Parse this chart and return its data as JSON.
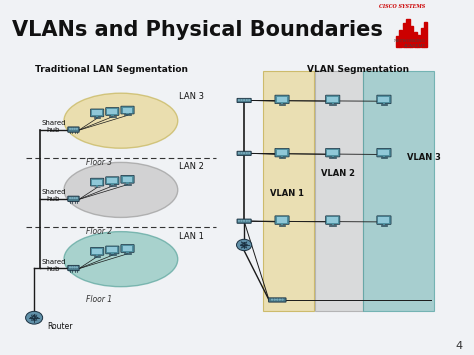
{
  "title": "VLANs and Physical Boundaries",
  "slide_bg": "#f0f2f5",
  "header_bg": "#dde4ed",
  "body_bg": "#f0f2f5",
  "page_number": "4",
  "trad_title": "Traditional LAN Segmentation",
  "vlan_title": "VLAN Segmentation",
  "lan_labels": [
    "LAN 3",
    "LAN 2",
    "LAN 1"
  ],
  "floor_labels": [
    "Floor 3",
    "Floor 2",
    "Floor 1"
  ],
  "vlan_labels": [
    "VLAN 1",
    "VLAN 2",
    "VLAN 3"
  ],
  "shared_hub_labels": [
    "Shared\nhub",
    "Shared\nhub",
    "Shared\nhub"
  ],
  "router_label": "Router",
  "ellipse_colors": [
    "#e8d898",
    "#c8c8c8",
    "#90c8c0"
  ],
  "ellipse_edge_colors": [
    "#c8b860",
    "#a0a0a0",
    "#60a8a0"
  ],
  "vlan_colors": [
    "#e8d898",
    "#d0d0d0",
    "#88c0c0"
  ],
  "vlan_edge_colors": [
    "#c0a840",
    "#a0a0a0",
    "#50a0a0"
  ],
  "title_fontsize": 15,
  "cisco_color": "#cc0000",
  "device_color": "#5090a0",
  "line_color": "#1a1a1a"
}
